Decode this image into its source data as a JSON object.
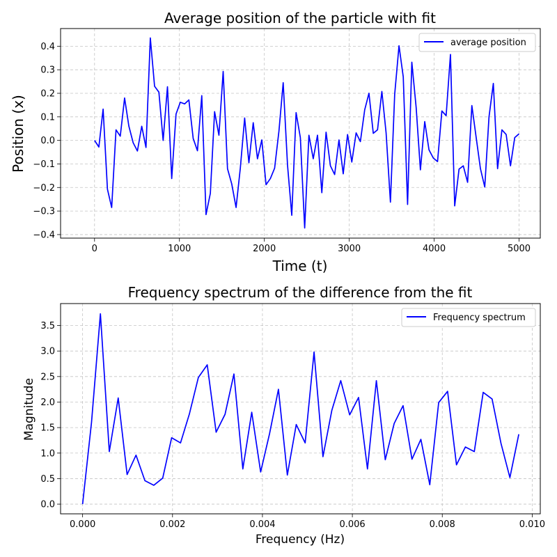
{
  "chart_data": [
    {
      "type": "line",
      "title": "Average position of the particle with fit",
      "xlabel": "Time (t)",
      "ylabel": "Position (x)",
      "xlim": [
        -400,
        5250
      ],
      "ylim": [
        -0.415,
        0.475
      ],
      "xticks": [
        0,
        1000,
        2000,
        3000,
        4000,
        5000
      ],
      "xtick_labels": [
        "0",
        "1000",
        "2000",
        "3000",
        "4000",
        "5000"
      ],
      "yticks": [
        -0.4,
        -0.3,
        -0.2,
        -0.1,
        0.0,
        0.1,
        0.2,
        0.3,
        0.4
      ],
      "ytick_labels": [
        "−0.4",
        "−0.3",
        "−0.2",
        "−0.1",
        "0.0",
        "0.1",
        "0.2",
        "0.3",
        "0.4"
      ],
      "grid": true,
      "legend_position": "top-right",
      "color": "#0000ff",
      "series": [
        {
          "name": "average position",
          "x": [
            0,
            51,
            101,
            152,
            202,
            253,
            303,
            354,
            404,
            455,
            505,
            556,
            606,
            657,
            707,
            758,
            808,
            859,
            909,
            960,
            1010,
            1061,
            1111,
            1162,
            1212,
            1263,
            1313,
            1364,
            1414,
            1465,
            1515,
            1566,
            1616,
            1667,
            1717,
            1768,
            1818,
            1869,
            1919,
            1970,
            2020,
            2071,
            2121,
            2172,
            2222,
            2273,
            2323,
            2374,
            2424,
            2475,
            2525,
            2576,
            2626,
            2677,
            2727,
            2778,
            2828,
            2879,
            2929,
            2980,
            3030,
            3081,
            3131,
            3182,
            3232,
            3283,
            3333,
            3384,
            3434,
            3485,
            3535,
            3586,
            3636,
            3687,
            3737,
            3788,
            3838,
            3889,
            3939,
            3990,
            4040,
            4091,
            4141,
            4192,
            4242,
            4293,
            4343,
            4394,
            4444,
            4495,
            4545,
            4596,
            4646,
            4697,
            4747,
            4798,
            4848,
            4899,
            4949,
            5000
          ],
          "values": [
            0.0,
            -0.028,
            0.133,
            -0.207,
            -0.285,
            0.045,
            0.018,
            0.18,
            0.061,
            -0.01,
            -0.045,
            0.06,
            -0.03,
            0.435,
            0.23,
            0.205,
            0.0,
            0.228,
            -0.162,
            0.112,
            0.162,
            0.155,
            0.172,
            0.008,
            -0.044,
            0.19,
            -0.315,
            -0.225,
            0.122,
            0.022,
            0.293,
            -0.12,
            -0.185,
            -0.285,
            -0.118,
            0.095,
            -0.095,
            0.075,
            -0.078,
            0.002,
            -0.188,
            -0.162,
            -0.118,
            0.04,
            0.245,
            -0.105,
            -0.318,
            0.118,
            0.012,
            -0.372,
            0.022,
            -0.078,
            0.022,
            -0.222,
            0.035,
            -0.108,
            -0.145,
            0.002,
            -0.142,
            0.025,
            -0.092,
            0.032,
            -0.005,
            0.13,
            0.2,
            0.03,
            0.045,
            0.208,
            0.032,
            -0.262,
            0.195,
            0.402,
            0.27,
            -0.272,
            0.332,
            0.14,
            -0.125,
            0.08,
            -0.04,
            -0.075,
            -0.09,
            0.125,
            0.105,
            0.365,
            -0.278,
            -0.122,
            -0.108,
            -0.178,
            0.148,
            0.012,
            -0.12,
            -0.198,
            0.1,
            0.242,
            -0.12,
            0.045,
            0.025,
            -0.108,
            0.012,
            0.028
          ]
        }
      ]
    },
    {
      "type": "line",
      "title": "Frequency spectrum of the difference from the fit",
      "xlabel": "Frequency (Hz)",
      "ylabel": "Magnitude",
      "xlim": [
        -0.00049,
        0.01018
      ],
      "ylim": [
        -0.19,
        3.93
      ],
      "xticks": [
        0.0,
        0.002,
        0.004,
        0.006,
        0.008,
        0.01
      ],
      "xtick_labels": [
        "0.000",
        "0.002",
        "0.004",
        "0.006",
        "0.008",
        "0.010"
      ],
      "yticks": [
        0.0,
        0.5,
        1.0,
        1.5,
        2.0,
        2.5,
        3.0,
        3.5
      ],
      "ytick_labels": [
        "0.0",
        "0.5",
        "1.0",
        "1.5",
        "2.0",
        "2.5",
        "3.0",
        "3.5"
      ],
      "grid": true,
      "legend_position": "top-right",
      "color": "#0000ff",
      "series": [
        {
          "name": "Frequency spectrum",
          "x": [
            0.0,
            0.000198,
            0.000396,
            0.000594,
            0.000792,
            0.00099,
            0.001188,
            0.001386,
            0.001584,
            0.001782,
            0.00198,
            0.002178,
            0.002376,
            0.002574,
            0.002772,
            0.00297,
            0.003168,
            0.003366,
            0.003564,
            0.003762,
            0.00396,
            0.004158,
            0.004356,
            0.004554,
            0.004752,
            0.00495,
            0.005148,
            0.005346,
            0.005544,
            0.005742,
            0.00594,
            0.006138,
            0.006336,
            0.006534,
            0.006732,
            0.00693,
            0.007128,
            0.007326,
            0.007524,
            0.007722,
            0.00792,
            0.008118,
            0.008316,
            0.008514,
            0.008712,
            0.00891,
            0.009108,
            0.009306,
            0.009504,
            0.009702
          ],
          "values": [
            0.0,
            1.6,
            3.73,
            1.03,
            2.08,
            0.58,
            0.96,
            0.46,
            0.37,
            0.51,
            1.3,
            1.2,
            1.77,
            2.48,
            2.73,
            1.41,
            1.76,
            2.55,
            0.69,
            1.8,
            0.63,
            1.38,
            2.25,
            0.57,
            1.56,
            1.2,
            2.98,
            0.93,
            1.84,
            2.42,
            1.75,
            2.09,
            0.69,
            2.42,
            0.87,
            1.58,
            1.93,
            0.88,
            1.27,
            0.38,
            1.99,
            2.21,
            0.77,
            1.12,
            1.03,
            2.19,
            2.06,
            1.19,
            0.52,
            1.37
          ]
        }
      ]
    }
  ]
}
